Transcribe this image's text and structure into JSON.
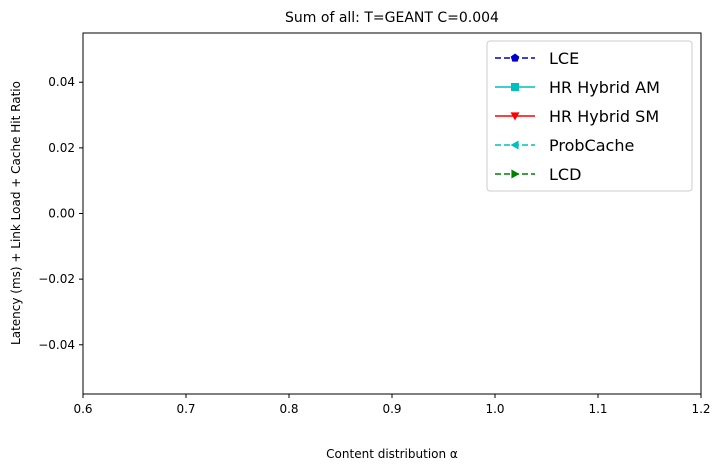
{
  "chart_data": {
    "type": "line",
    "title": "Sum of all: T=GEANT C=0.004",
    "xlabel": "Content distribution α",
    "ylabel": "Latency (ms) + Link Load + Cache Hit Ratio",
    "xlim": [
      0.6,
      1.2
    ],
    "ylim": [
      -0.055,
      0.055
    ],
    "xticks": [
      0.6,
      0.7,
      0.8,
      0.9,
      1.0,
      1.1,
      1.2
    ],
    "xtick_labels": [
      "0.6",
      "0.7",
      "0.8",
      "0.9",
      "1.0",
      "1.1",
      "1.2"
    ],
    "yticks": [
      0.04,
      0.02,
      0.0,
      -0.02,
      -0.04
    ],
    "ytick_labels": [
      "0.04",
      "0.02",
      "0.00",
      "−0.02",
      "−0.04"
    ],
    "grid": false,
    "legend_position": "top-right",
    "series": [
      {
        "name": "LCE",
        "color": "#0000cc",
        "linestyle": "dashed",
        "marker": "pentagon",
        "x": [],
        "y": []
      },
      {
        "name": "HR Hybrid AM",
        "color": "#00bfbf",
        "linestyle": "solid",
        "marker": "square",
        "x": [],
        "y": []
      },
      {
        "name": "HR Hybrid SM",
        "color": "#ff0000",
        "linestyle": "solid",
        "marker": "triangle-down",
        "x": [],
        "y": []
      },
      {
        "name": "ProbCache",
        "color": "#00bfbf",
        "linestyle": "dashed",
        "marker": "triangle-left",
        "x": [],
        "y": []
      },
      {
        "name": "LCD",
        "color": "#008000",
        "linestyle": "dashed",
        "marker": "triangle-right",
        "x": [],
        "y": []
      }
    ]
  }
}
